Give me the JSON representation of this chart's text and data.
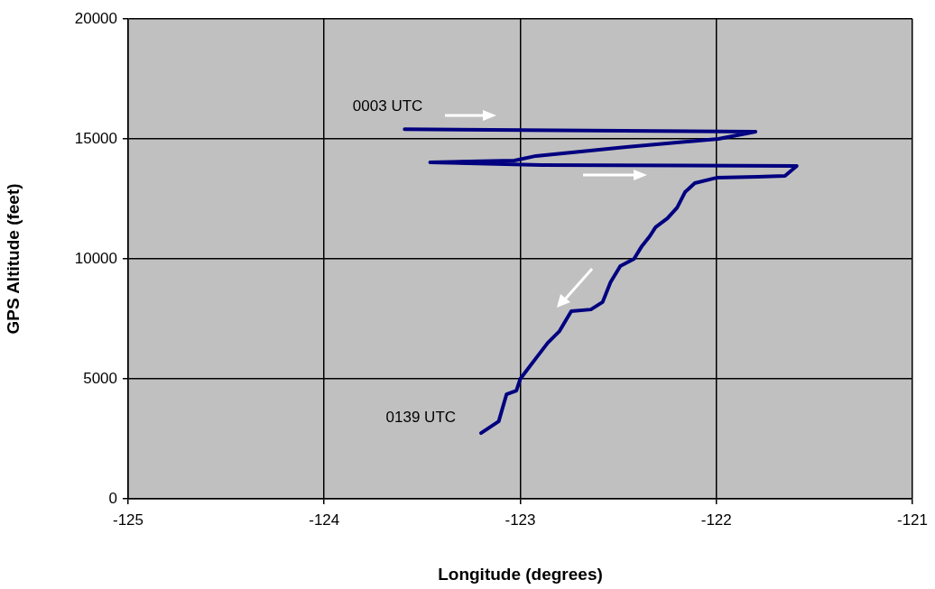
{
  "chart_data": {
    "type": "line",
    "xlabel": "Longitude (degrees)",
    "ylabel": "GPS Altitude (feet)",
    "xlim": [
      -125,
      -121
    ],
    "xticks": [
      -125,
      -124,
      -123,
      -122,
      -121
    ],
    "ylim": [
      0,
      20000
    ],
    "yticks": [
      0,
      5000,
      10000,
      15000,
      20000
    ],
    "grid": true,
    "legend": false,
    "marker": "none",
    "line_style": "solid",
    "series": [
      {
        "color": "#000080",
        "x": [
          -123.59,
          -121.8,
          -121.99,
          -122.46,
          -122.92,
          -123.03,
          -123.46,
          -122.89,
          -121.59,
          -121.65,
          -121.79,
          -122.0,
          -122.11,
          -122.16,
          -122.2,
          -122.25,
          -122.31,
          -122.34,
          -122.38,
          -122.42,
          -122.49,
          -122.54,
          -122.58,
          -122.64,
          -122.74,
          -122.8,
          -122.86,
          -122.92,
          -123.0,
          -123.02,
          -123.07,
          -123.11,
          -123.2
        ],
        "values": [
          15400,
          15300,
          15000,
          14660,
          14290,
          14100,
          14020,
          13910,
          13870,
          13460,
          13420,
          13380,
          13160,
          12780,
          12140,
          11690,
          11320,
          10940,
          10530,
          10000,
          9700,
          9020,
          8200,
          7890,
          7820,
          6990,
          6500,
          5860,
          5000,
          4510,
          4360,
          3230,
          2740
        ]
      }
    ],
    "annotations": [
      {
        "text": "0003 UTC",
        "x": -123.59,
        "y": 15400
      },
      {
        "text": "0139 UTC",
        "x": -123.2,
        "y": 2740
      }
    ]
  }
}
